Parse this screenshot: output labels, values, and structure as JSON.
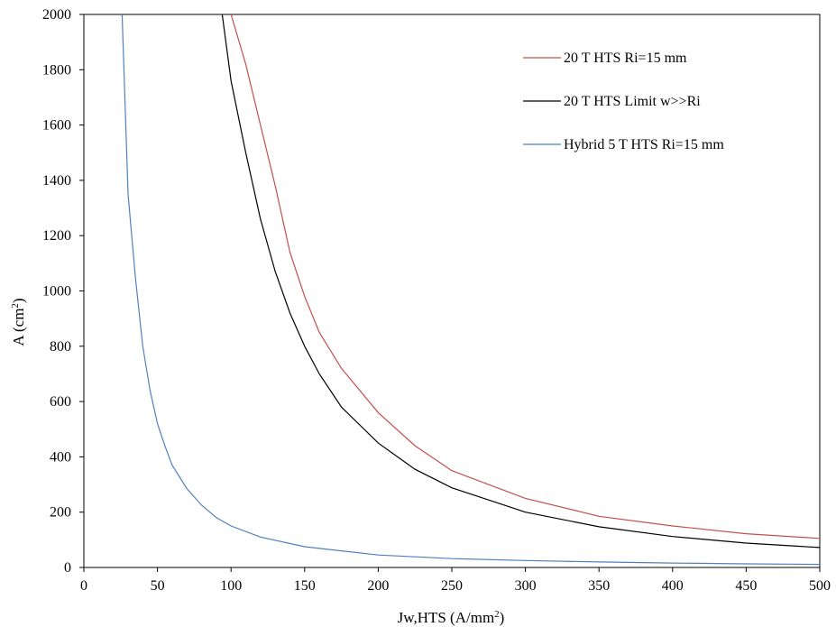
{
  "chart_data": {
    "type": "line",
    "title": "",
    "xlabel": "Jw,HTS (A/mm",
    "xlabel_sup": "2",
    "xlabel_suffix": ")",
    "ylabel": "A (cm",
    "ylabel_sup": "2",
    "ylabel_suffix": ")",
    "xlim": [
      0,
      500
    ],
    "ylim": [
      0,
      2000
    ],
    "xticks": [
      0,
      50,
      100,
      150,
      200,
      250,
      300,
      350,
      400,
      450,
      500
    ],
    "yticks": [
      0,
      200,
      400,
      600,
      800,
      1000,
      1200,
      1400,
      1600,
      1800,
      2000
    ],
    "grid": false,
    "legend_position": "top-right",
    "series": [
      {
        "name": "20 T HTS Ri=15 mm",
        "color": "#c0504d",
        "x": [
          100,
          110,
          120,
          130,
          140,
          150,
          160,
          175,
          200,
          225,
          250,
          300,
          350,
          400,
          450,
          500
        ],
        "y": [
          2000,
          1820,
          1600,
          1380,
          1140,
          980,
          850,
          720,
          560,
          440,
          350,
          250,
          185,
          150,
          122,
          105
        ]
      },
      {
        "name": "20 T HTS Limit w>>Ri",
        "color": "#000000",
        "x": [
          94,
          100,
          110,
          120,
          130,
          140,
          150,
          160,
          175,
          200,
          225,
          250,
          300,
          350,
          400,
          450,
          500
        ],
        "y": [
          2000,
          1760,
          1500,
          1260,
          1070,
          920,
          800,
          700,
          580,
          450,
          355,
          288,
          200,
          147,
          112,
          88,
          72
        ]
      },
      {
        "name": "Hybrid 5 T HTS Ri=15 mm",
        "color": "#4f81bd",
        "x": [
          26,
          30,
          35,
          40,
          45,
          50,
          55,
          60,
          70,
          80,
          90,
          100,
          120,
          150,
          200,
          250,
          300,
          350,
          400,
          450,
          500
        ],
        "y": [
          2000,
          1350,
          1050,
          800,
          640,
          520,
          440,
          370,
          285,
          225,
          180,
          150,
          110,
          75,
          45,
          32,
          25,
          20,
          16,
          13,
          11
        ]
      }
    ]
  }
}
